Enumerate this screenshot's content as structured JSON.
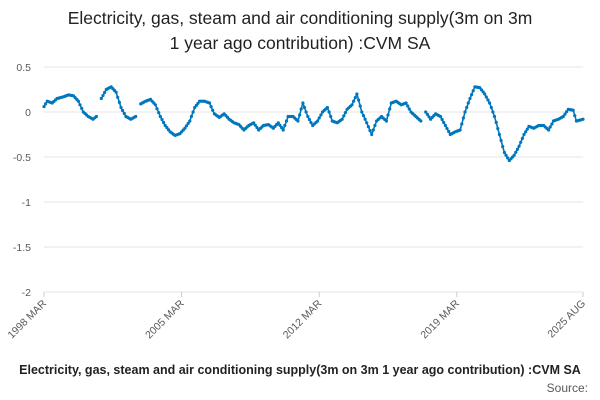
{
  "chart_data": {
    "type": "scatter",
    "title_lines": [
      "Electricity, gas, steam and air conditioning supply(3m on 3m",
      "1 year ago contribution) :CVM SA"
    ],
    "ylim": [
      -2,
      0.5
    ],
    "yticks": [
      "0.5",
      "0",
      "-0.5",
      "-1",
      "-1.5",
      "-2"
    ],
    "ytick_values": [
      0.5,
      0,
      -0.5,
      -1,
      -1.5,
      -2
    ],
    "x_start": "1998-03",
    "x_end": "2025-08",
    "xticks": [
      "1998 MAR",
      "2005 MAR",
      "2012 MAR",
      "2019 MAR",
      "2025 AUG"
    ],
    "xtick_positions": [
      "1998-03",
      "2005-03",
      "2012-03",
      "2019-03",
      "2025-08"
    ],
    "legend": "Electricity, gas, steam and air conditioning supply(3m on 3m 1 year ago contribution) :CVM SA",
    "source": "Source:",
    "colors": {
      "series": "#0077bd",
      "grid": "#e6e6e6",
      "axis_text": "#595959"
    },
    "series": [
      {
        "name": "Electricity, gas, steam and air conditioning supply(3m on 3m 1 year ago contribution) :CVM SA",
        "anchors": [
          [
            "1998-03",
            0.06
          ],
          [
            "1998-05",
            0.12
          ],
          [
            "1998-08",
            0.1
          ],
          [
            "1998-11",
            0.15
          ],
          [
            "1999-03",
            0.17
          ],
          [
            "1999-06",
            0.19
          ],
          [
            "1999-09",
            0.18
          ],
          [
            "1999-12",
            0.12
          ],
          [
            "2000-03",
            0.0
          ],
          [
            "2000-06",
            -0.05
          ],
          [
            "2000-09",
            -0.08
          ],
          [
            "2000-11",
            -0.05
          ],
          [
            "2001-02",
            0.15
          ],
          [
            "2001-05",
            0.25
          ],
          [
            "2001-08",
            0.28
          ],
          [
            "2001-11",
            0.22
          ],
          [
            "2002-02",
            0.05
          ],
          [
            "2002-05",
            -0.05
          ],
          [
            "2002-08",
            -0.08
          ],
          [
            "2002-11",
            -0.05
          ],
          [
            "2003-02",
            0.09
          ],
          [
            "2003-05",
            0.12
          ],
          [
            "2003-08",
            0.14
          ],
          [
            "2003-11",
            0.08
          ],
          [
            "2004-02",
            -0.05
          ],
          [
            "2004-05",
            -0.15
          ],
          [
            "2004-08",
            -0.22
          ],
          [
            "2004-11",
            -0.26
          ],
          [
            "2005-02",
            -0.24
          ],
          [
            "2005-05",
            -0.18
          ],
          [
            "2005-08",
            -0.1
          ],
          [
            "2005-11",
            0.05
          ],
          [
            "2006-02",
            0.12
          ],
          [
            "2006-05",
            0.12
          ],
          [
            "2006-08",
            0.1
          ],
          [
            "2006-11",
            -0.02
          ],
          [
            "2007-02",
            -0.06
          ],
          [
            "2007-05",
            -0.02
          ],
          [
            "2007-08",
            -0.08
          ],
          [
            "2007-11",
            -0.12
          ],
          [
            "2008-02",
            -0.14
          ],
          [
            "2008-05",
            -0.2
          ],
          [
            "2008-08",
            -0.15
          ],
          [
            "2008-11",
            -0.12
          ],
          [
            "2009-02",
            -0.2
          ],
          [
            "2009-05",
            -0.15
          ],
          [
            "2009-08",
            -0.14
          ],
          [
            "2009-11",
            -0.18
          ],
          [
            "2010-02",
            -0.12
          ],
          [
            "2010-05",
            -0.2
          ],
          [
            "2010-08",
            -0.05
          ],
          [
            "2010-11",
            -0.05
          ],
          [
            "2011-02",
            -0.1
          ],
          [
            "2011-05",
            0.1
          ],
          [
            "2011-08",
            -0.05
          ],
          [
            "2011-11",
            -0.15
          ],
          [
            "2012-02",
            -0.1
          ],
          [
            "2012-05",
            0.0
          ],
          [
            "2012-08",
            0.05
          ],
          [
            "2012-11",
            -0.1
          ],
          [
            "2013-02",
            -0.12
          ],
          [
            "2013-05",
            -0.08
          ],
          [
            "2013-08",
            0.03
          ],
          [
            "2013-11",
            0.08
          ],
          [
            "2014-02",
            0.2
          ],
          [
            "2014-05",
            0.0
          ],
          [
            "2014-08",
            -0.12
          ],
          [
            "2014-11",
            -0.25
          ],
          [
            "2015-02",
            -0.1
          ],
          [
            "2015-05",
            -0.05
          ],
          [
            "2015-08",
            -0.1
          ],
          [
            "2015-11",
            0.1
          ],
          [
            "2016-02",
            0.12
          ],
          [
            "2016-05",
            0.08
          ],
          [
            "2016-08",
            0.1
          ],
          [
            "2016-11",
            0.0
          ],
          [
            "2017-02",
            -0.05
          ],
          [
            "2017-05",
            -0.1
          ],
          [
            "2017-08",
            0.0
          ],
          [
            "2017-11",
            -0.08
          ],
          [
            "2018-02",
            -0.02
          ],
          [
            "2018-05",
            -0.05
          ],
          [
            "2018-08",
            -0.15
          ],
          [
            "2018-11",
            -0.25
          ],
          [
            "2019-02",
            -0.22
          ],
          [
            "2019-05",
            -0.2
          ],
          [
            "2019-08",
            0.0
          ],
          [
            "2019-11",
            0.15
          ],
          [
            "2020-02",
            0.28
          ],
          [
            "2020-05",
            0.27
          ],
          [
            "2020-08",
            0.2
          ],
          [
            "2020-11",
            0.1
          ],
          [
            "2021-02",
            -0.05
          ],
          [
            "2021-05",
            -0.25
          ],
          [
            "2021-08",
            -0.45
          ],
          [
            "2021-11",
            -0.54
          ],
          [
            "2022-02",
            -0.48
          ],
          [
            "2022-05",
            -0.38
          ],
          [
            "2022-08",
            -0.25
          ],
          [
            "2022-11",
            -0.16
          ],
          [
            "2023-02",
            -0.18
          ],
          [
            "2023-05",
            -0.15
          ],
          [
            "2023-08",
            -0.15
          ],
          [
            "2023-11",
            -0.2
          ],
          [
            "2024-02",
            -0.1
          ],
          [
            "2024-05",
            -0.08
          ],
          [
            "2024-08",
            -0.05
          ],
          [
            "2024-11",
            0.03
          ],
          [
            "2025-02",
            0.02
          ],
          [
            "2025-04",
            -0.1
          ],
          [
            "2025-06",
            -0.09
          ],
          [
            "2025-08",
            -0.08
          ]
        ],
        "gaps": [
          [
            "2000-11",
            "2001-02"
          ],
          [
            "2002-11",
            "2003-02"
          ],
          [
            "2017-05",
            "2017-08"
          ]
        ]
      }
    ]
  }
}
